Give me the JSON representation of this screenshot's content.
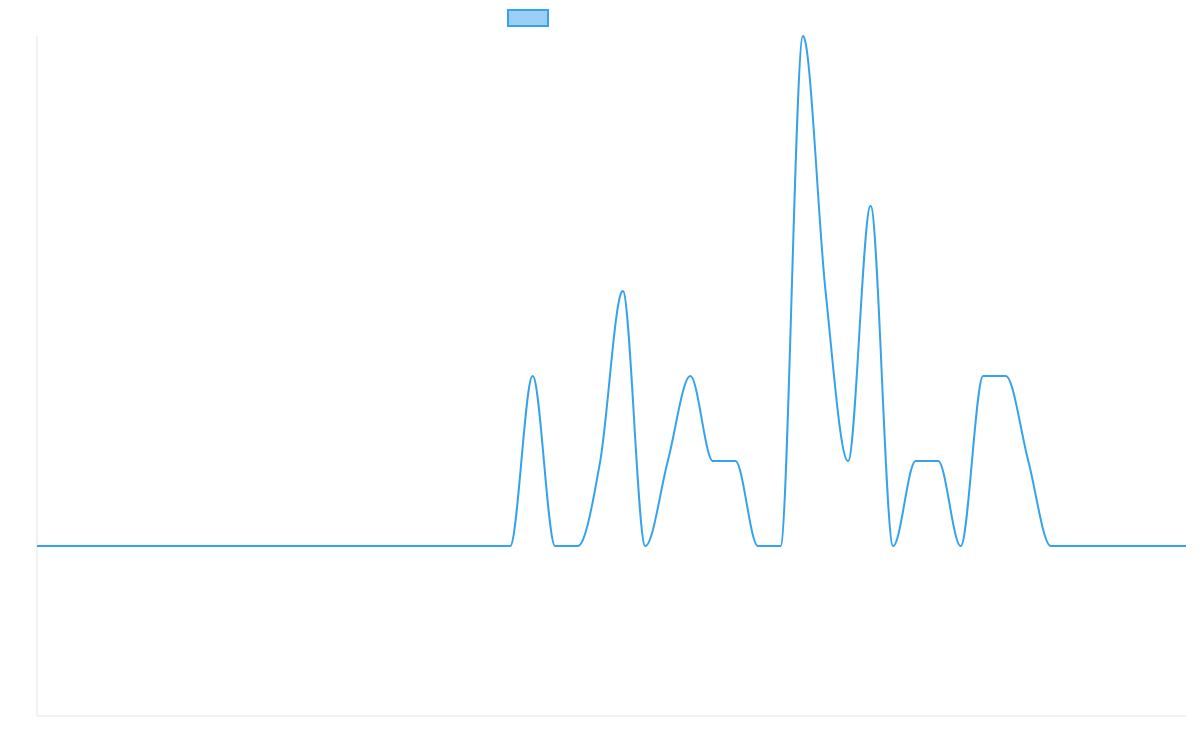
{
  "chart_data": {
    "type": "line",
    "title": "",
    "xlabel": "",
    "ylabel": "",
    "grid": false,
    "legend_position": "top-center",
    "xlim": [
      0,
      51
    ],
    "ylim": [
      -1,
      3
    ],
    "series": [
      {
        "color": "#36a2eb",
        "fill_color": "#9ad0f5",
        "x": [
          0,
          1,
          2,
          3,
          4,
          5,
          6,
          7,
          8,
          9,
          10,
          11,
          12,
          13,
          14,
          15,
          16,
          17,
          18,
          19,
          20,
          21,
          22,
          23,
          24,
          25,
          26,
          27,
          28,
          29,
          30,
          31,
          32,
          33,
          34,
          35,
          36,
          37,
          38,
          39,
          40,
          41,
          42,
          43,
          44,
          45,
          46,
          47,
          48,
          49,
          50,
          51
        ],
        "values": [
          0,
          0,
          0,
          0,
          0,
          0,
          0,
          0,
          0,
          0,
          0,
          0,
          0,
          0,
          0,
          0,
          0,
          0,
          0,
          0,
          0,
          0,
          1,
          0,
          0,
          0.5,
          1.5,
          0,
          0.5,
          1,
          0.5,
          0.5,
          0,
          0,
          3,
          1.5,
          0.5,
          2,
          0,
          0.5,
          0.5,
          0,
          1,
          1,
          0.5,
          0,
          0,
          0,
          0,
          0,
          0,
          0
        ]
      }
    ]
  }
}
